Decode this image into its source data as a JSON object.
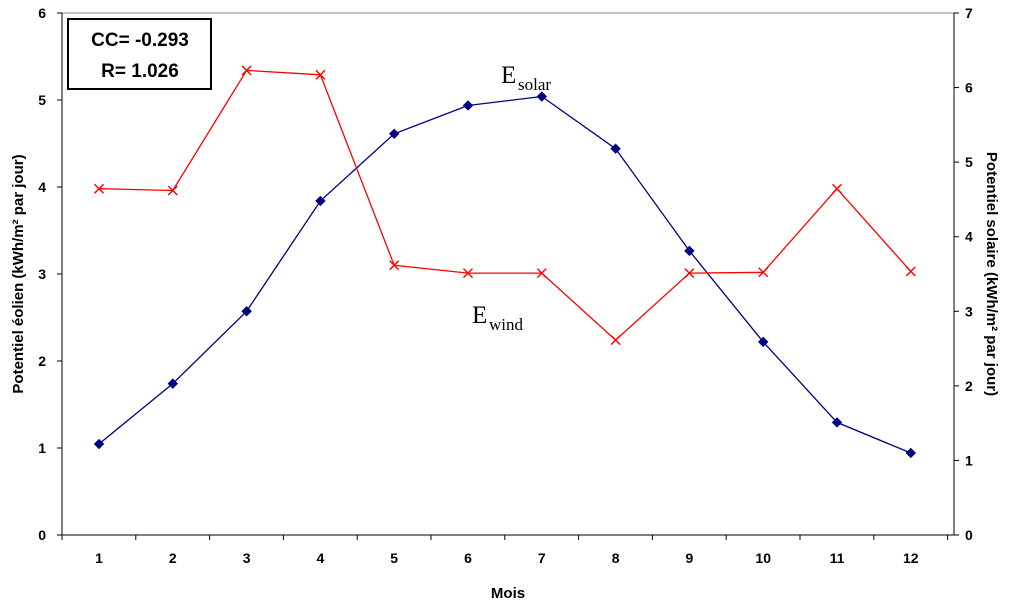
{
  "chart_data": {
    "type": "line",
    "xlabel": "Mois",
    "ylabel_left": "Potentiel éolien (kWh/m² par jour)",
    "ylabel_right": "Potentiel solaire (kWh/m² par jour)",
    "x": [
      1,
      2,
      3,
      4,
      5,
      6,
      7,
      8,
      9,
      10,
      11,
      12
    ],
    "ylim_left": [
      0,
      6
    ],
    "ylim_right": [
      0,
      7
    ],
    "yticks_left": [
      0,
      1,
      2,
      3,
      4,
      5,
      6
    ],
    "yticks_right": [
      0,
      1,
      2,
      3,
      4,
      5,
      6,
      7
    ],
    "grid": false,
    "annotation_box": {
      "line1": "CC= -0.293",
      "line2": "R= 1.026"
    },
    "series": [
      {
        "label_main": "E",
        "label_sub": "solar",
        "axis": "right",
        "color": "#000080",
        "marker": "diamond",
        "values": [
          1.22,
          2.03,
          3.0,
          4.48,
          5.38,
          5.76,
          5.88,
          5.18,
          3.81,
          2.59,
          1.51,
          1.1
        ]
      },
      {
        "label_main": "E",
        "label_sub": "wind",
        "axis": "left",
        "color": "#ff0000",
        "marker": "x",
        "values": [
          3.98,
          3.96,
          5.34,
          5.29,
          3.1,
          3.01,
          3.01,
          2.24,
          3.01,
          3.02,
          3.98,
          3.03
        ]
      }
    ]
  }
}
